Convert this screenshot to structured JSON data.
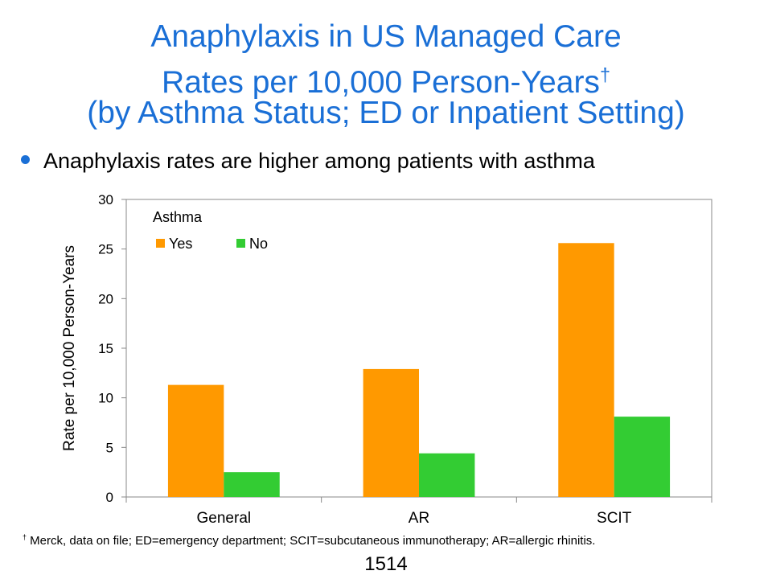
{
  "title": {
    "line1": "Anaphylaxis in US Managed Care",
    "line2": "Rates per 10,000 Person-Years",
    "line2_mark": "†",
    "line3": "(by Asthma Status; ED or Inpatient Setting)"
  },
  "bullet": "Anaphylaxis rates are higher among patients with asthma",
  "footnote": {
    "mark": "†",
    "text": " Merck, data on file; ED=emergency department; SCIT=subcutaneous immunotherapy; AR=allergic rhinitis."
  },
  "page_number": "1514",
  "colors": {
    "title": "#1a6fd6",
    "bullet": "#1a6fd6",
    "series_yes": "#ff9900",
    "series_no": "#33cc33"
  },
  "chart_data": {
    "type": "bar",
    "categories": [
      "General",
      "AR",
      "SCIT"
    ],
    "series": [
      {
        "name": "Yes",
        "values": [
          11.3,
          12.9,
          25.6
        ],
        "color": "#ff9900"
      },
      {
        "name": "No",
        "values": [
          2.5,
          4.4,
          8.1
        ],
        "color": "#33cc33"
      }
    ],
    "legend_title": "Asthma",
    "legend_position": "top-left",
    "ylabel": "Rate per 10,000 Person-Years",
    "xlabel": "",
    "ylim": [
      0,
      30
    ],
    "yticks": [
      0,
      5,
      10,
      15,
      20,
      25,
      30
    ],
    "grid": false
  }
}
